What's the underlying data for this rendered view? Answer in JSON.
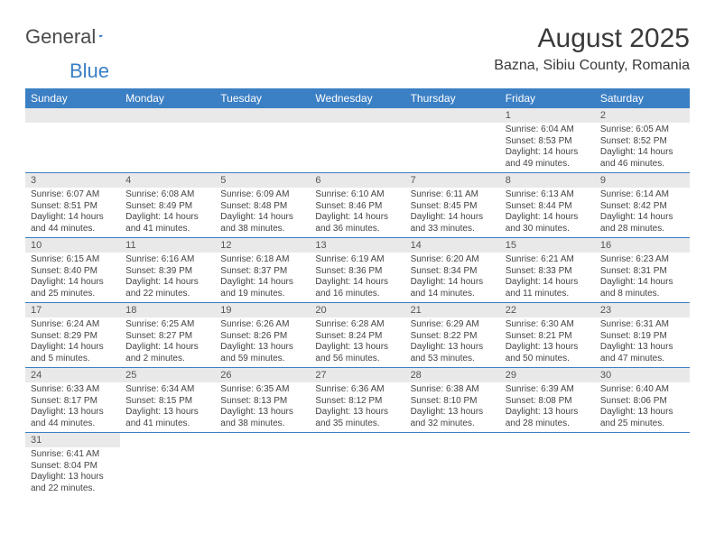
{
  "logo": {
    "text_a": "General",
    "text_b": "Blue"
  },
  "title": "August 2025",
  "location": "Bazna, Sibiu County, Romania",
  "colors": {
    "header_bg": "#3b7fc4",
    "header_text": "#ffffff",
    "daynum_bg": "#e9e9e9",
    "border": "#3b7fc4",
    "text": "#3a3a3a"
  },
  "day_headers": [
    "Sunday",
    "Monday",
    "Tuesday",
    "Wednesday",
    "Thursday",
    "Friday",
    "Saturday"
  ],
  "weeks": [
    [
      null,
      null,
      null,
      null,
      null,
      {
        "n": "1",
        "sunrise": "6:04 AM",
        "sunset": "8:53 PM",
        "daylight": "14 hours and 49 minutes."
      },
      {
        "n": "2",
        "sunrise": "6:05 AM",
        "sunset": "8:52 PM",
        "daylight": "14 hours and 46 minutes."
      }
    ],
    [
      {
        "n": "3",
        "sunrise": "6:07 AM",
        "sunset": "8:51 PM",
        "daylight": "14 hours and 44 minutes."
      },
      {
        "n": "4",
        "sunrise": "6:08 AM",
        "sunset": "8:49 PM",
        "daylight": "14 hours and 41 minutes."
      },
      {
        "n": "5",
        "sunrise": "6:09 AM",
        "sunset": "8:48 PM",
        "daylight": "14 hours and 38 minutes."
      },
      {
        "n": "6",
        "sunrise": "6:10 AM",
        "sunset": "8:46 PM",
        "daylight": "14 hours and 36 minutes."
      },
      {
        "n": "7",
        "sunrise": "6:11 AM",
        "sunset": "8:45 PM",
        "daylight": "14 hours and 33 minutes."
      },
      {
        "n": "8",
        "sunrise": "6:13 AM",
        "sunset": "8:44 PM",
        "daylight": "14 hours and 30 minutes."
      },
      {
        "n": "9",
        "sunrise": "6:14 AM",
        "sunset": "8:42 PM",
        "daylight": "14 hours and 28 minutes."
      }
    ],
    [
      {
        "n": "10",
        "sunrise": "6:15 AM",
        "sunset": "8:40 PM",
        "daylight": "14 hours and 25 minutes."
      },
      {
        "n": "11",
        "sunrise": "6:16 AM",
        "sunset": "8:39 PM",
        "daylight": "14 hours and 22 minutes."
      },
      {
        "n": "12",
        "sunrise": "6:18 AM",
        "sunset": "8:37 PM",
        "daylight": "14 hours and 19 minutes."
      },
      {
        "n": "13",
        "sunrise": "6:19 AM",
        "sunset": "8:36 PM",
        "daylight": "14 hours and 16 minutes."
      },
      {
        "n": "14",
        "sunrise": "6:20 AM",
        "sunset": "8:34 PM",
        "daylight": "14 hours and 14 minutes."
      },
      {
        "n": "15",
        "sunrise": "6:21 AM",
        "sunset": "8:33 PM",
        "daylight": "14 hours and 11 minutes."
      },
      {
        "n": "16",
        "sunrise": "6:23 AM",
        "sunset": "8:31 PM",
        "daylight": "14 hours and 8 minutes."
      }
    ],
    [
      {
        "n": "17",
        "sunrise": "6:24 AM",
        "sunset": "8:29 PM",
        "daylight": "14 hours and 5 minutes."
      },
      {
        "n": "18",
        "sunrise": "6:25 AM",
        "sunset": "8:27 PM",
        "daylight": "14 hours and 2 minutes."
      },
      {
        "n": "19",
        "sunrise": "6:26 AM",
        "sunset": "8:26 PM",
        "daylight": "13 hours and 59 minutes."
      },
      {
        "n": "20",
        "sunrise": "6:28 AM",
        "sunset": "8:24 PM",
        "daylight": "13 hours and 56 minutes."
      },
      {
        "n": "21",
        "sunrise": "6:29 AM",
        "sunset": "8:22 PM",
        "daylight": "13 hours and 53 minutes."
      },
      {
        "n": "22",
        "sunrise": "6:30 AM",
        "sunset": "8:21 PM",
        "daylight": "13 hours and 50 minutes."
      },
      {
        "n": "23",
        "sunrise": "6:31 AM",
        "sunset": "8:19 PM",
        "daylight": "13 hours and 47 minutes."
      }
    ],
    [
      {
        "n": "24",
        "sunrise": "6:33 AM",
        "sunset": "8:17 PM",
        "daylight": "13 hours and 44 minutes."
      },
      {
        "n": "25",
        "sunrise": "6:34 AM",
        "sunset": "8:15 PM",
        "daylight": "13 hours and 41 minutes."
      },
      {
        "n": "26",
        "sunrise": "6:35 AM",
        "sunset": "8:13 PM",
        "daylight": "13 hours and 38 minutes."
      },
      {
        "n": "27",
        "sunrise": "6:36 AM",
        "sunset": "8:12 PM",
        "daylight": "13 hours and 35 minutes."
      },
      {
        "n": "28",
        "sunrise": "6:38 AM",
        "sunset": "8:10 PM",
        "daylight": "13 hours and 32 minutes."
      },
      {
        "n": "29",
        "sunrise": "6:39 AM",
        "sunset": "8:08 PM",
        "daylight": "13 hours and 28 minutes."
      },
      {
        "n": "30",
        "sunrise": "6:40 AM",
        "sunset": "8:06 PM",
        "daylight": "13 hours and 25 minutes."
      }
    ],
    [
      {
        "n": "31",
        "sunrise": "6:41 AM",
        "sunset": "8:04 PM",
        "daylight": "13 hours and 22 minutes."
      },
      null,
      null,
      null,
      null,
      null,
      null
    ]
  ],
  "labels": {
    "sunrise": "Sunrise: ",
    "sunset": "Sunset: ",
    "daylight": "Daylight: "
  }
}
